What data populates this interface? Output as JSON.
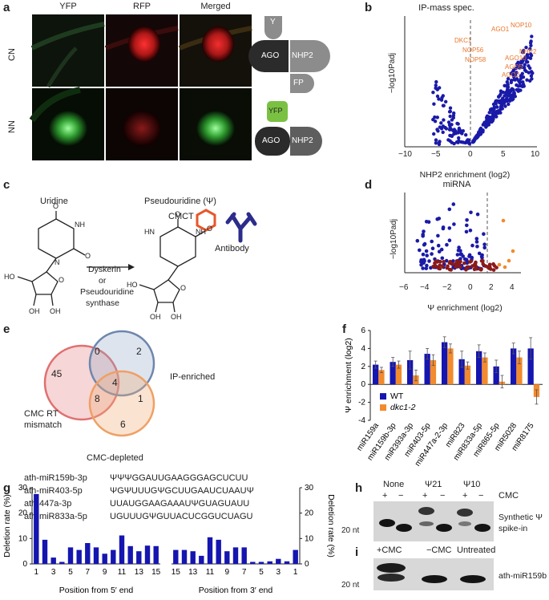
{
  "panels": {
    "a": "a",
    "b": "b",
    "c": "c",
    "d": "d",
    "e": "e",
    "f": "f",
    "g": "g",
    "h": "h",
    "i": "i"
  },
  "panel_a": {
    "columns": [
      "YFP",
      "RFP",
      "Merged"
    ],
    "rows": [
      "CN",
      "NN"
    ],
    "diagram_top": {
      "y": "Y",
      "ago": "AGO",
      "nhp2": "NHP2",
      "fp": "FP"
    },
    "diagram_bottom": {
      "yfp": "YFP",
      "ago": "AGO",
      "nhp2": "NHP2"
    },
    "colors": {
      "green": "#3fa23c",
      "red": "#d92c2c",
      "yfp_tag": "#7ac143",
      "gray": "#8c8c8c",
      "dark": "#2b2b2b"
    }
  },
  "panel_b": {
    "title": "IP-mass spec.",
    "ylabel": "−log10Padj",
    "xlabel": "NHP2 enrichment (log2)",
    "xticks": [
      "−10",
      "−5",
      "0",
      "5",
      "10"
    ],
    "labels": [
      "NOP10",
      "AGO1",
      "DKC1",
      "NOP56",
      "AGO10",
      "NOP58",
      "AGO5",
      "AGO2",
      "NHP2"
    ],
    "dot_color": "#1a1aa8",
    "label_color": "#e8762b"
  },
  "panel_c": {
    "uridine": "Uridine",
    "pseudouridine": "Pseudouridine (Ψ)",
    "cmct": "CMCT",
    "antibody": "Antibody",
    "enzyme_1": "Dyskerin",
    "enzyme_2": "or",
    "enzyme_3": "Pseudouridine",
    "enzyme_4": "synthase",
    "atoms": {
      "o": "O",
      "nh": "NH",
      "hn": "HN",
      "n": "N",
      "oh": "OH",
      "ho": "HO"
    },
    "hex_color": "#e8562b",
    "ab_color": "#2c2c8c"
  },
  "panel_d": {
    "title": "miRNA",
    "ylabel": "−log10Padj",
    "xlabel": "Ψ enrichment (log2)",
    "xticks": [
      "−6",
      "−4",
      "−2",
      "0",
      "2",
      "4"
    ]
  },
  "panel_e": {
    "venn": {
      "cmc_rt": "CMC RT",
      "mismatch": "mismatch",
      "ip": "IP-enriched",
      "depleted": "CMC-depleted",
      "n45": "45",
      "n0": "0",
      "n2": "2",
      "n4": "4",
      "n8": "8",
      "n1": "1",
      "n6": "6"
    },
    "sequences": [
      {
        "name": "ath-miR159b-3p",
        "seq": "ΨΨΨGGAUUGAAGGGAGCUCUU"
      },
      {
        "name": "ath-miR403-5p",
        "seq": "ΨGΨUUUGΨGCUUGAAUCUAAUΨ"
      },
      {
        "name": "ath-447a-3p",
        "seq": "UUAUGGAAGAAAUΨGUAGUAUU"
      },
      {
        "name": "ath-miR833a-5p",
        "seq": "UGUUUGΨGUUACUCGGUCUAGU"
      }
    ]
  },
  "chart_data": [
    {
      "type": "bar",
      "panel": "f",
      "ylabel": "Ψ enrichment (log2)",
      "ylim": [
        -4,
        6
      ],
      "yticks": [
        6,
        4,
        2,
        0,
        -2,
        -4
      ],
      "categories": [
        "miR159a",
        "miR159b-3p",
        "miR393a-3p",
        "miR403-5p",
        "miR447a-2-3p",
        "miR823",
        "miR833a-5p",
        "miR865-5p",
        "miR5028",
        "miR8175"
      ],
      "series": [
        {
          "name": "WT",
          "color": "#1515b0",
          "values": [
            2.2,
            2.5,
            2.7,
            3.4,
            4.7,
            2.8,
            3.7,
            2.0,
            4.0,
            4.0
          ],
          "errors": [
            0.4,
            0.5,
            1.0,
            0.6,
            0.6,
            0.9,
            0.7,
            0.7,
            0.6,
            1.2
          ]
        },
        {
          "name": "dkc1-2",
          "color": "#f28a2e",
          "values": [
            1.6,
            2.2,
            1.0,
            2.7,
            4.0,
            2.1,
            3.0,
            0.3,
            3.0,
            -1.4
          ],
          "errors": [
            0.3,
            0.4,
            0.6,
            0.6,
            0.5,
            0.4,
            0.5,
            0.7,
            0.7,
            0.8
          ]
        }
      ],
      "legend": "bottom-left"
    },
    {
      "type": "bar",
      "panel": "g-left",
      "ylabel": "Deletion rate (%)",
      "xlabel": "Position from 5′ end",
      "ylim": [
        0,
        30
      ],
      "yticks": [
        0,
        10,
        20,
        30
      ],
      "categories": [
        "1",
        "2",
        "3",
        "4",
        "5",
        "6",
        "7",
        "8",
        "9",
        "10",
        "11",
        "12",
        "13",
        "14",
        "15"
      ],
      "xtick_labels": [
        "1",
        "3",
        "5",
        "7",
        "9",
        "11",
        "13",
        "15"
      ],
      "values": [
        27.5,
        9.5,
        2.5,
        0.8,
        6.5,
        5.5,
        8.2,
        6.5,
        4.0,
        5.5,
        11.2,
        7.0,
        5.0,
        7.2,
        7.0
      ]
    },
    {
      "type": "bar",
      "panel": "g-right",
      "ylabel": "Deletion rate (%)",
      "xlabel": "Position from 3′ end",
      "ylim": [
        0,
        30
      ],
      "yticks": [
        0,
        10,
        20,
        30
      ],
      "categories": [
        "15",
        "14",
        "13",
        "12",
        "11",
        "10",
        "9",
        "8",
        "7",
        "6",
        "5",
        "4",
        "3",
        "2",
        "1"
      ],
      "xtick_labels": [
        "15",
        "13",
        "11",
        "9",
        "7",
        "5",
        "3",
        "1"
      ],
      "values": [
        5.5,
        5.5,
        5.0,
        3.2,
        10.5,
        9.5,
        5.0,
        6.5,
        6.5,
        0.8,
        0.8,
        1.0,
        2.0,
        1.0,
        5.5
      ]
    }
  ],
  "panel_h": {
    "groups": [
      "None",
      "Ψ21",
      "Ψ10"
    ],
    "cmc": "CMC",
    "plus": "+",
    "minus": "−",
    "label": "Synthetic Ψ spike-in",
    "size": "20 nt"
  },
  "panel_i": {
    "groups": [
      "+CMC",
      "−CMC",
      "Untreated"
    ],
    "label": "ath-miR159b",
    "size": "20 nt"
  }
}
